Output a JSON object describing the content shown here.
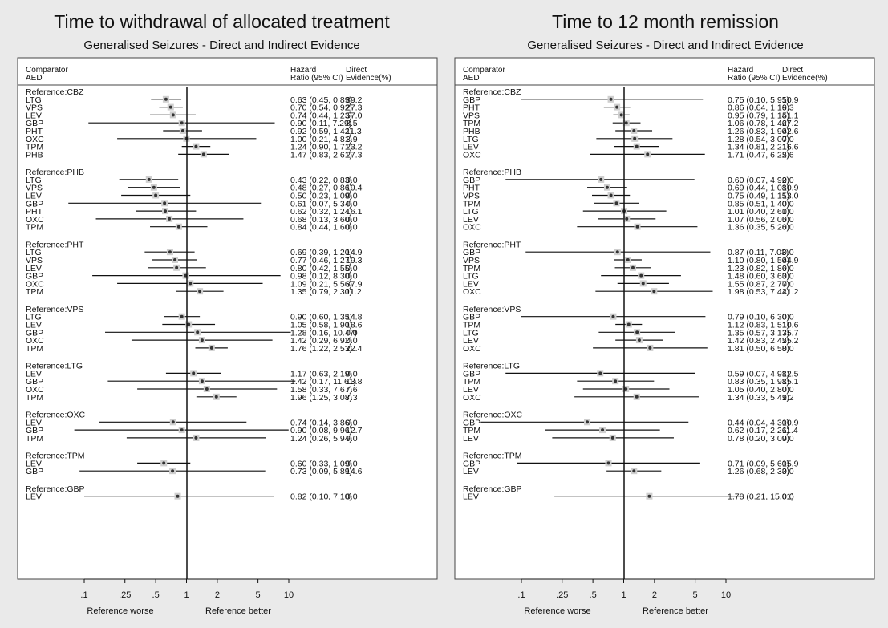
{
  "chart_data": [
    {
      "type": "forest",
      "title": "Time to withdrawal of allocated treatment",
      "subtitle": "Generalised Seizures - Direct and Indirect Evidence",
      "header": {
        "comparator": [
          "Comparator",
          "AED"
        ],
        "hr": [
          "Hazard",
          "Ratio (95% CI)"
        ],
        "direct": [
          "Direct",
          "Evidence(%)"
        ]
      },
      "x_ticks": [
        ".1",
        ".25",
        ".5",
        "1",
        "2",
        "5",
        "10"
      ],
      "x_tick_values": [
        0.1,
        0.25,
        0.5,
        1,
        2,
        5,
        10
      ],
      "x_scale": "log",
      "xlim": [
        0.05,
        15
      ],
      "x_labels": [
        "Reference worse",
        "Reference better"
      ],
      "groups": [
        {
          "reference": "Reference:CBZ",
          "rows": [
            {
              "aed": "LTG",
              "hr": 0.63,
              "lo": 0.45,
              "hi": 0.89,
              "text": "0.63 (0.45, 0.89)",
              "direct": "39.2"
            },
            {
              "aed": "VPS",
              "hr": 0.7,
              "lo": 0.54,
              "hi": 0.92,
              "text": "0.70 (0.54, 0.92)",
              "direct": "27.3"
            },
            {
              "aed": "LEV",
              "hr": 0.74,
              "lo": 0.44,
              "hi": 1.23,
              "text": "0.74 (0.44, 1.23)",
              "direct": "57.0"
            },
            {
              "aed": "GBP",
              "hr": 0.9,
              "lo": 0.11,
              "hi": 7.29,
              "text": "0.90 (0.11, 7.29)",
              "direct": "8.5"
            },
            {
              "aed": "PHT",
              "hr": 0.92,
              "lo": 0.59,
              "hi": 1.42,
              "text": "0.92 (0.59, 1.42)",
              "direct": "11.3"
            },
            {
              "aed": "OXC",
              "hr": 1.0,
              "lo": 0.21,
              "hi": 4.81,
              "text": "1.00 (0.21, 4.81)",
              "direct": "3.9"
            },
            {
              "aed": "TPM",
              "hr": 1.24,
              "lo": 0.9,
              "hi": 1.71,
              "text": "1.24 (0.90, 1.71)",
              "direct": "23.2"
            },
            {
              "aed": "PHB",
              "hr": 1.47,
              "lo": 0.83,
              "hi": 2.61,
              "text": "1.47 (0.83, 2.61)",
              "direct": "27.3"
            }
          ]
        },
        {
          "reference": "Reference:PHB",
          "rows": [
            {
              "aed": "LTG",
              "hr": 0.43,
              "lo": 0.22,
              "hi": 0.83,
              "text": "0.43 (0.22, 0.83)",
              "direct": "0.0"
            },
            {
              "aed": "VPS",
              "hr": 0.48,
              "lo": 0.27,
              "hi": 0.86,
              "text": "0.48 (0.27, 0.86)",
              "direct": "19.4"
            },
            {
              "aed": "LEV",
              "hr": 0.5,
              "lo": 0.23,
              "hi": 1.09,
              "text": "0.50 (0.23, 1.09)",
              "direct": "0.0"
            },
            {
              "aed": "GBP",
              "hr": 0.61,
              "lo": 0.07,
              "hi": 5.34,
              "text": "0.61 (0.07, 5.34)",
              "direct": "0.0"
            },
            {
              "aed": "PHT",
              "hr": 0.62,
              "lo": 0.32,
              "hi": 1.24,
              "text": "0.62 (0.32, 1.24)",
              "direct": "16.1"
            },
            {
              "aed": "OXC",
              "hr": 0.68,
              "lo": 0.13,
              "hi": 3.6,
              "text": "0.68 (0.13, 3.60)",
              "direct": "0.0"
            },
            {
              "aed": "TPM",
              "hr": 0.84,
              "lo": 0.44,
              "hi": 1.6,
              "text": "0.84 (0.44, 1.60)",
              "direct": "0.0"
            }
          ]
        },
        {
          "reference": "Reference:PHT",
          "rows": [
            {
              "aed": "LTG",
              "hr": 0.69,
              "lo": 0.39,
              "hi": 1.2,
              "text": "0.69 (0.39, 1.20)",
              "direct": "14.9"
            },
            {
              "aed": "VPS",
              "hr": 0.77,
              "lo": 0.46,
              "hi": 1.27,
              "text": "0.77 (0.46, 1.27)",
              "direct": "19.3"
            },
            {
              "aed": "LEV",
              "hr": 0.8,
              "lo": 0.42,
              "hi": 1.55,
              "text": "0.80 (0.42, 1.55)",
              "direct": "0.0"
            },
            {
              "aed": "GBP",
              "hr": 0.98,
              "lo": 0.12,
              "hi": 8.3,
              "text": "0.98 (0.12, 8.30)",
              "direct": "0.0"
            },
            {
              "aed": "OXC",
              "hr": 1.09,
              "lo": 0.21,
              "hi": 5.56,
              "text": "1.09 (0.21, 5.56)",
              "direct": "37.9"
            },
            {
              "aed": "TPM",
              "hr": 1.35,
              "lo": 0.79,
              "hi": 2.3,
              "text": "1.35 (0.79, 2.30)",
              "direct": "11.2"
            }
          ]
        },
        {
          "reference": "Reference:VPS",
          "rows": [
            {
              "aed": "LTG",
              "hr": 0.9,
              "lo": 0.6,
              "hi": 1.35,
              "text": "0.90 (0.60, 1.35)",
              "direct": "14.8"
            },
            {
              "aed": "LEV",
              "hr": 1.05,
              "lo": 0.58,
              "hi": 1.9,
              "text": "1.05 (0.58, 1.90)",
              "direct": "18.6"
            },
            {
              "aed": "GBP",
              "hr": 1.28,
              "lo": 0.16,
              "hi": 10.47,
              "text": "1.28 (0.16, 10.47)",
              "direct": "0.0"
            },
            {
              "aed": "OXC",
              "hr": 1.42,
              "lo": 0.29,
              "hi": 6.92,
              "text": "1.42 (0.29, 6.92)",
              "direct": "0.0"
            },
            {
              "aed": "TPM",
              "hr": 1.76,
              "lo": 1.22,
              "hi": 2.53,
              "text": "1.76 (1.22, 2.53)",
              "direct": "22.4"
            }
          ]
        },
        {
          "reference": "Reference:LTG",
          "rows": [
            {
              "aed": "LEV",
              "hr": 1.17,
              "lo": 0.63,
              "hi": 2.19,
              "text": "1.17 (0.63, 2.19)",
              "direct": "0.0"
            },
            {
              "aed": "GBP",
              "hr": 1.42,
              "lo": 0.17,
              "hi": 11.61,
              "text": "1.42 (0.17, 11.61)",
              "direct": "13.8"
            },
            {
              "aed": "OXC",
              "hr": 1.58,
              "lo": 0.33,
              "hi": 7.67,
              "text": "1.58 (0.33, 7.67)",
              "direct": "7.6"
            },
            {
              "aed": "TPM",
              "hr": 1.96,
              "lo": 1.25,
              "hi": 3.08,
              "text": "1.96 (1.25, 3.08)",
              "direct": "7.3"
            }
          ]
        },
        {
          "reference": "Reference:OXC",
          "rows": [
            {
              "aed": "LEV",
              "hr": 0.74,
              "lo": 0.14,
              "hi": 3.86,
              "text": "0.74 (0.14, 3.86)",
              "direct": "0.0"
            },
            {
              "aed": "GBP",
              "hr": 0.9,
              "lo": 0.08,
              "hi": 9.96,
              "text": "0.90 (0.08, 9.96)",
              "direct": "12.7"
            },
            {
              "aed": "TPM",
              "hr": 1.24,
              "lo": 0.26,
              "hi": 5.94,
              "text": "1.24 (0.26, 5.94)",
              "direct": "9.0"
            }
          ]
        },
        {
          "reference": "Reference:TPM",
          "rows": [
            {
              "aed": "LEV",
              "hr": 0.6,
              "lo": 0.33,
              "hi": 1.09,
              "text": "0.60 (0.33, 1.09)",
              "direct": "0.0"
            },
            {
              "aed": "GBP",
              "hr": 0.73,
              "lo": 0.09,
              "hi": 5.89,
              "text": "0.73 (0.09, 5.89)",
              "direct": "14.6"
            }
          ]
        },
        {
          "reference": "Reference:GBP",
          "rows": [
            {
              "aed": "LEV",
              "hr": 0.82,
              "lo": 0.1,
              "hi": 7.1,
              "text": "0.82 (0.10, 7.10)",
              "direct": "0.0"
            }
          ]
        }
      ]
    },
    {
      "type": "forest",
      "title": "Time to 12 month remission",
      "subtitle": "Generalised Seizures - Direct and Indirect Evidence",
      "header": {
        "comparator": [
          "Comparator",
          "AED"
        ],
        "hr": [
          "Hazard",
          "Ratio (95% CI)"
        ],
        "direct": [
          "Direct",
          "Evidence(%)"
        ]
      },
      "x_ticks": [
        ".1",
        ".25",
        ".5",
        "1",
        "2",
        "5",
        "10"
      ],
      "x_tick_values": [
        0.1,
        0.25,
        0.5,
        1,
        2,
        5,
        10
      ],
      "x_scale": "log",
      "xlim": [
        0.05,
        15
      ],
      "x_labels": [
        "Reference worse",
        "Reference better"
      ],
      "groups": [
        {
          "reference": "Reference:CBZ",
          "rows": [
            {
              "aed": "GBP",
              "hr": 0.75,
              "lo": 0.1,
              "hi": 5.95,
              "text": "0.75 (0.10, 5.95)",
              "direct": "10.9"
            },
            {
              "aed": "PHT",
              "hr": 0.86,
              "lo": 0.64,
              "hi": 1.16,
              "text": "0.86 (0.64, 1.16)",
              "direct": "9.3"
            },
            {
              "aed": "VPS",
              "hr": 0.95,
              "lo": 0.79,
              "hi": 1.14,
              "text": "0.95 (0.79, 1.14)",
              "direct": "51.1"
            },
            {
              "aed": "TPM",
              "hr": 1.06,
              "lo": 0.78,
              "hi": 1.46,
              "text": "1.06 (0.78, 1.46)",
              "direct": "27.2"
            },
            {
              "aed": "PHB",
              "hr": 1.26,
              "lo": 0.83,
              "hi": 1.9,
              "text": "1.26 (0.83, 1.90)",
              "direct": "42.6"
            },
            {
              "aed": "LTG",
              "hr": 1.28,
              "lo": 0.54,
              "hi": 3.0,
              "text": "1.28 (0.54, 3.00)",
              "direct": "7.0"
            },
            {
              "aed": "LEV",
              "hr": 1.34,
              "lo": 0.81,
              "hi": 2.21,
              "text": "1.34 (0.81, 2.21)",
              "direct": "16.6"
            },
            {
              "aed": "OXC",
              "hr": 1.71,
              "lo": 0.47,
              "hi": 6.22,
              "text": "1.71 (0.47, 6.22)",
              "direct": "5.6"
            }
          ]
        },
        {
          "reference": "Reference:PHB",
          "rows": [
            {
              "aed": "GBP",
              "hr": 0.6,
              "lo": 0.07,
              "hi": 4.92,
              "text": "0.60 (0.07, 4.92)",
              "direct": "0.0"
            },
            {
              "aed": "PHT",
              "hr": 0.69,
              "lo": 0.44,
              "hi": 1.08,
              "text": "0.69 (0.44, 1.08)",
              "direct": "10.9"
            },
            {
              "aed": "VPS",
              "hr": 0.75,
              "lo": 0.49,
              "hi": 1.15,
              "text": "0.75 (0.49, 1.15)",
              "direct": "13.0"
            },
            {
              "aed": "TPM",
              "hr": 0.85,
              "lo": 0.51,
              "hi": 1.4,
              "text": "0.85 (0.51, 1.40)",
              "direct": "0.0"
            },
            {
              "aed": "LTG",
              "hr": 1.01,
              "lo": 0.4,
              "hi": 2.61,
              "text": "1.01 (0.40, 2.61)",
              "direct": "0.0"
            },
            {
              "aed": "LEV",
              "hr": 1.07,
              "lo": 0.56,
              "hi": 2.05,
              "text": "1.07 (0.56, 2.05)",
              "direct": "0.0"
            },
            {
              "aed": "OXC",
              "hr": 1.36,
              "lo": 0.35,
              "hi": 5.26,
              "text": "1.36 (0.35, 5.26)",
              "direct": "0.0"
            }
          ]
        },
        {
          "reference": "Reference:PHT",
          "rows": [
            {
              "aed": "GBP",
              "hr": 0.87,
              "lo": 0.11,
              "hi": 7.03,
              "text": "0.87 (0.11, 7.03)",
              "direct": "0.0"
            },
            {
              "aed": "VPS",
              "hr": 1.1,
              "lo": 0.8,
              "hi": 1.5,
              "text": "1.10 (0.80, 1.50)",
              "direct": "44.9"
            },
            {
              "aed": "TPM",
              "hr": 1.23,
              "lo": 0.82,
              "hi": 1.86,
              "text": "1.23 (0.82, 1.86)",
              "direct": "0.0"
            },
            {
              "aed": "LTG",
              "hr": 1.48,
              "lo": 0.6,
              "hi": 3.63,
              "text": "1.48 (0.60, 3.63)",
              "direct": "0.0"
            },
            {
              "aed": "LEV",
              "hr": 1.55,
              "lo": 0.87,
              "hi": 2.77,
              "text": "1.55 (0.87, 2.77)",
              "direct": "0.0"
            },
            {
              "aed": "OXC",
              "hr": 1.98,
              "lo": 0.53,
              "hi": 7.42,
              "text": "1.98 (0.53, 7.42)",
              "direct": "41.2"
            }
          ]
        },
        {
          "reference": "Reference:VPS",
          "rows": [
            {
              "aed": "GBP",
              "hr": 0.79,
              "lo": 0.1,
              "hi": 6.3,
              "text": "0.79 (0.10, 6.30)",
              "direct": "0.0"
            },
            {
              "aed": "TPM",
              "hr": 1.12,
              "lo": 0.83,
              "hi": 1.51,
              "text": "1.12 (0.83, 1.51)",
              "direct": "10.6"
            },
            {
              "aed": "LTG",
              "hr": 1.35,
              "lo": 0.57,
              "hi": 3.17,
              "text": "1.35 (0.57, 3.17)",
              "direct": "35.7"
            },
            {
              "aed": "LEV",
              "hr": 1.42,
              "lo": 0.83,
              "hi": 2.42,
              "text": "1.42 (0.83, 2.42)",
              "direct": "55.2"
            },
            {
              "aed": "OXC",
              "hr": 1.81,
              "lo": 0.5,
              "hi": 6.58,
              "text": "1.81 (0.50, 6.58)",
              "direct": "0.0"
            }
          ]
        },
        {
          "reference": "Reference:LTG",
          "rows": [
            {
              "aed": "GBP",
              "hr": 0.59,
              "lo": 0.07,
              "hi": 4.98,
              "text": "0.59 (0.07, 4.98)",
              "direct": "12.5"
            },
            {
              "aed": "TPM",
              "hr": 0.83,
              "lo": 0.35,
              "hi": 1.98,
              "text": "0.83 (0.35, 1.98)",
              "direct": "15.1"
            },
            {
              "aed": "LEV",
              "hr": 1.05,
              "lo": 0.4,
              "hi": 2.8,
              "text": "1.05 (0.40, 2.80)",
              "direct": "0.0"
            },
            {
              "aed": "OXC",
              "hr": 1.34,
              "lo": 0.33,
              "hi": 5.41,
              "text": "1.34 (0.33, 5.41)",
              "direct": "9.2"
            }
          ]
        },
        {
          "reference": "Reference:OXC",
          "rows": [
            {
              "aed": "GBP",
              "hr": 0.44,
              "lo": 0.04,
              "hi": 4.3,
              "text": "0.44 (0.04, 4.30)",
              "direct": "10.9"
            },
            {
              "aed": "TPM",
              "hr": 0.62,
              "lo": 0.17,
              "hi": 2.26,
              "text": "0.62 (0.17, 2.26)",
              "direct": "11.4"
            },
            {
              "aed": "LEV",
              "hr": 0.78,
              "lo": 0.2,
              "hi": 3.09,
              "text": "0.78 (0.20, 3.09)",
              "direct": "0.0"
            }
          ]
        },
        {
          "reference": "Reference:TPM",
          "rows": [
            {
              "aed": "GBP",
              "hr": 0.71,
              "lo": 0.09,
              "hi": 5.6,
              "text": "0.71 (0.09, 5.60)",
              "direct": "15.9"
            },
            {
              "aed": "LEV",
              "hr": 1.26,
              "lo": 0.68,
              "hi": 2.33,
              "text": "1.26 (0.68, 2.33)",
              "direct": "0.0"
            }
          ]
        },
        {
          "reference": "Reference:GBP",
          "rows": [
            {
              "aed": "LEV",
              "hr": 1.78,
              "lo": 0.21,
              "hi": 15.01,
              "text": "1.78 (0.21, 15.01)",
              "direct": "0.0"
            }
          ]
        }
      ]
    }
  ]
}
